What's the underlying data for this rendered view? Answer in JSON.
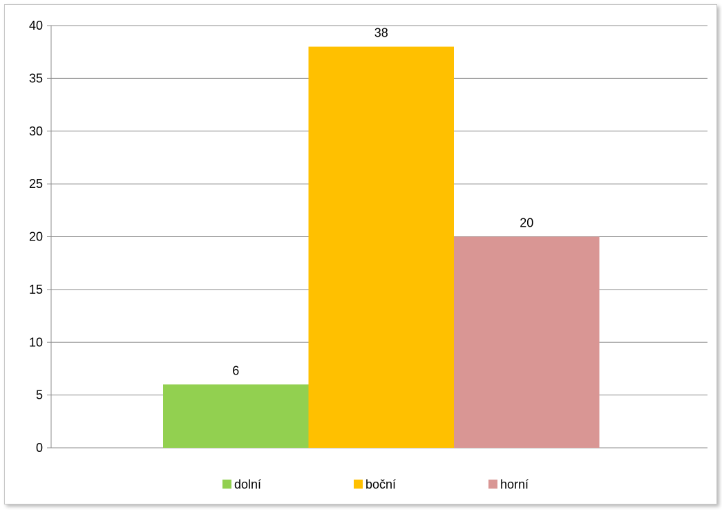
{
  "chart_data": {
    "type": "bar",
    "categories": [
      "dolní",
      "boční",
      "horní"
    ],
    "values": [
      6,
      38,
      20
    ],
    "series": [
      {
        "name": "dolní",
        "value": 6,
        "color": "#92D050"
      },
      {
        "name": "boční",
        "value": 38,
        "color": "#FFC000"
      },
      {
        "name": "horní",
        "value": 20,
        "color": "#D99694"
      }
    ],
    "title": "",
    "xlabel": "",
    "ylabel": "",
    "ylim": [
      0,
      40
    ],
    "yticks": [
      "0",
      "5",
      "10",
      "15",
      "20",
      "25",
      "30",
      "35",
      "40"
    ],
    "data_labels": [
      "6",
      "38",
      "20"
    ],
    "grid": true,
    "legend": {
      "position": "bottom",
      "entries": [
        "dolní",
        "boční",
        "horní"
      ]
    }
  }
}
